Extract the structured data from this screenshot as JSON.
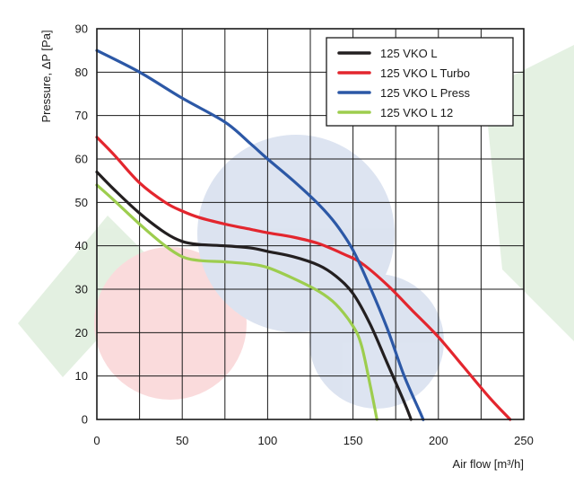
{
  "chart_data": {
    "type": "line",
    "xlabel": "Air flow [m³/h]",
    "ylabel": "Pressure, ΔP [Pa]",
    "xlim": [
      0,
      250
    ],
    "ylim": [
      0,
      90
    ],
    "x_ticks": [
      0,
      50,
      100,
      150,
      200,
      250
    ],
    "y_ticks": [
      0,
      10,
      20,
      30,
      40,
      50,
      60,
      70,
      80,
      90
    ],
    "grid": "on",
    "legend_position": "top-right",
    "series": [
      {
        "name": "125 VKO L",
        "color": "#231f20",
        "points": [
          [
            0,
            57
          ],
          [
            10,
            53
          ],
          [
            25,
            47.5
          ],
          [
            40,
            43
          ],
          [
            50,
            41
          ],
          [
            60,
            40.3
          ],
          [
            75,
            40
          ],
          [
            90,
            39.5
          ],
          [
            100,
            38.7
          ],
          [
            115,
            37.5
          ],
          [
            130,
            35.5
          ],
          [
            140,
            33
          ],
          [
            150,
            29
          ],
          [
            160,
            22
          ],
          [
            170,
            13
          ],
          [
            180,
            4
          ],
          [
            184,
            0
          ]
        ]
      },
      {
        "name": "125 VKO L Turbo",
        "color": "#e3262e",
        "points": [
          [
            0,
            65
          ],
          [
            10,
            61
          ],
          [
            25,
            54.5
          ],
          [
            40,
            50
          ],
          [
            50,
            48
          ],
          [
            60,
            46.5
          ],
          [
            75,
            45
          ],
          [
            90,
            43.8
          ],
          [
            100,
            43
          ],
          [
            115,
            42
          ],
          [
            130,
            40.5
          ],
          [
            145,
            38
          ],
          [
            155,
            36
          ],
          [
            170,
            31
          ],
          [
            185,
            25
          ],
          [
            200,
            19
          ],
          [
            215,
            12
          ],
          [
            230,
            5
          ],
          [
            242,
            0
          ]
        ]
      },
      {
        "name": "125 VKO L Press",
        "color": "#2c58a6",
        "points": [
          [
            0,
            85
          ],
          [
            25,
            80
          ],
          [
            50,
            74
          ],
          [
            75,
            68.5
          ],
          [
            90,
            63.5
          ],
          [
            100,
            60
          ],
          [
            115,
            55
          ],
          [
            130,
            49.5
          ],
          [
            140,
            45
          ],
          [
            150,
            39
          ],
          [
            160,
            30.5
          ],
          [
            170,
            21
          ],
          [
            180,
            10
          ],
          [
            190,
            1
          ],
          [
            191,
            0
          ]
        ]
      },
      {
        "name": "125 VKO L 12",
        "color": "#9dcd4e",
        "points": [
          [
            0,
            54
          ],
          [
            10,
            50.5
          ],
          [
            25,
            45
          ],
          [
            40,
            40
          ],
          [
            50,
            37.5
          ],
          [
            60,
            36.6
          ],
          [
            75,
            36.3
          ],
          [
            90,
            35.8
          ],
          [
            100,
            35
          ],
          [
            115,
            32.5
          ],
          [
            130,
            29.5
          ],
          [
            140,
            26.5
          ],
          [
            150,
            21.5
          ],
          [
            155,
            17
          ],
          [
            160,
            8
          ],
          [
            163,
            2
          ],
          [
            164,
            0
          ]
        ]
      }
    ]
  }
}
